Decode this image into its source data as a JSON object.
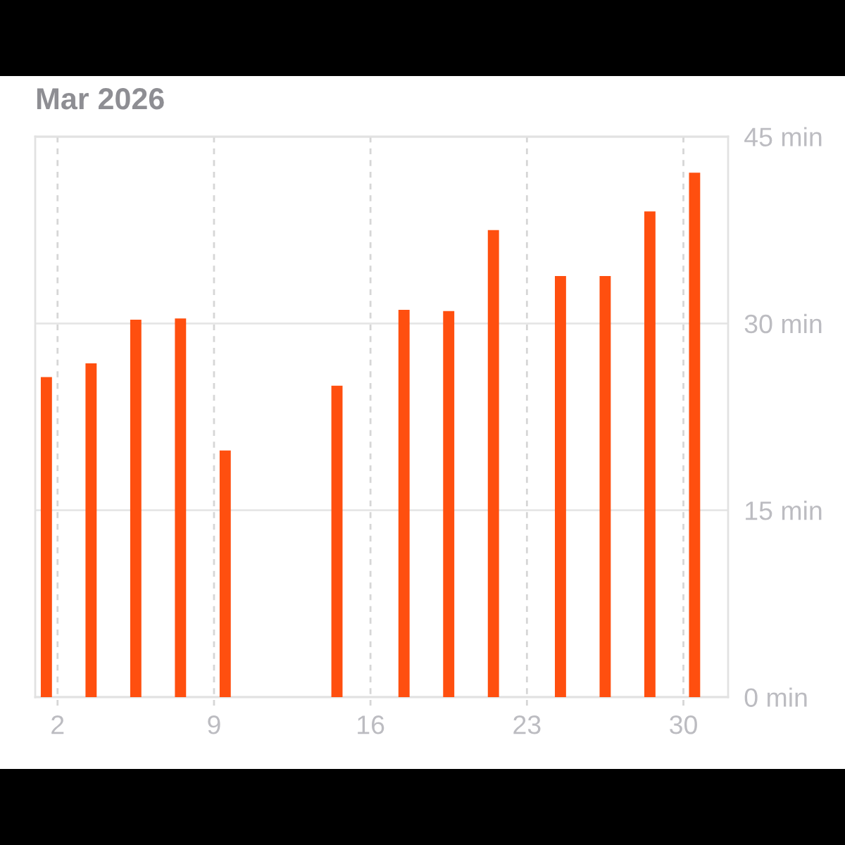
{
  "chart_data": {
    "type": "bar",
    "title": "Mar 2026",
    "x": [
      "2026-03-01T12:00",
      "2026-03-03T12:00",
      "2026-03-05T12:00",
      "2026-03-07T12:00",
      "2026-03-09T12:00",
      "2026-03-14T12:00",
      "2026-03-17T12:00",
      "2026-03-19T12:00",
      "2026-03-21T12:00",
      "2026-03-24T12:00",
      "2026-03-26T12:00",
      "2026-03-28T12:00",
      "2026-03-30T12:00"
    ],
    "values": [
      25.7,
      26.8,
      30.3,
      30.4,
      19.8,
      25.0,
      31.1,
      31.0,
      37.5,
      33.8,
      33.8,
      39.0,
      42.1
    ],
    "color": "#ff4f0f",
    "xlim": [
      "2026-03-01",
      "2026-04-01"
    ],
    "xticks": [
      {
        "value": "2026-03-02",
        "label": "2"
      },
      {
        "value": "2026-03-09",
        "label": "9"
      },
      {
        "value": "2026-03-16",
        "label": "16"
      },
      {
        "value": "2026-03-23",
        "label": "23"
      },
      {
        "value": "2026-03-30",
        "label": "30"
      }
    ],
    "ylim": [
      0,
      45
    ],
    "yticks": [
      {
        "value": 0,
        "label": "0 min"
      },
      {
        "value": 15,
        "label": "15 min"
      },
      {
        "value": 30,
        "label": "30 min"
      },
      {
        "value": 45,
        "label": "45 min"
      }
    ],
    "grid": true
  }
}
